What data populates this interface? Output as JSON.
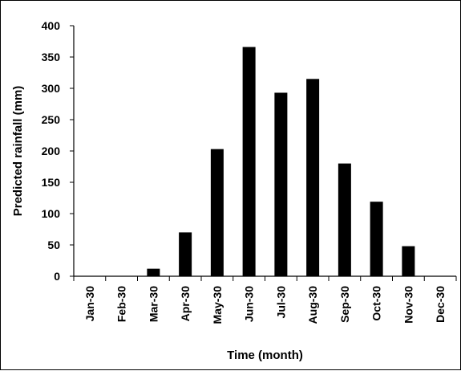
{
  "chart_data": {
    "type": "bar",
    "title": "",
    "xlabel": "Time (month)",
    "ylabel": "Predicted rainfall (mm)",
    "categories": [
      "Jan-30",
      "Feb-30",
      "Mar-30",
      "Apr-30",
      "May-30",
      "Jun-30",
      "Jul-30",
      "Aug-30",
      "Sep-30",
      "Oct-30",
      "Nov-30",
      "Dec-30"
    ],
    "values": [
      0,
      0,
      12,
      70,
      203,
      366,
      293,
      315,
      180,
      119,
      48,
      0
    ],
    "ylim": [
      0,
      400
    ],
    "yticks": [
      0,
      50,
      100,
      150,
      200,
      250,
      300,
      350,
      400
    ],
    "grid": false,
    "legend": "none",
    "bar_color": "#000000"
  }
}
